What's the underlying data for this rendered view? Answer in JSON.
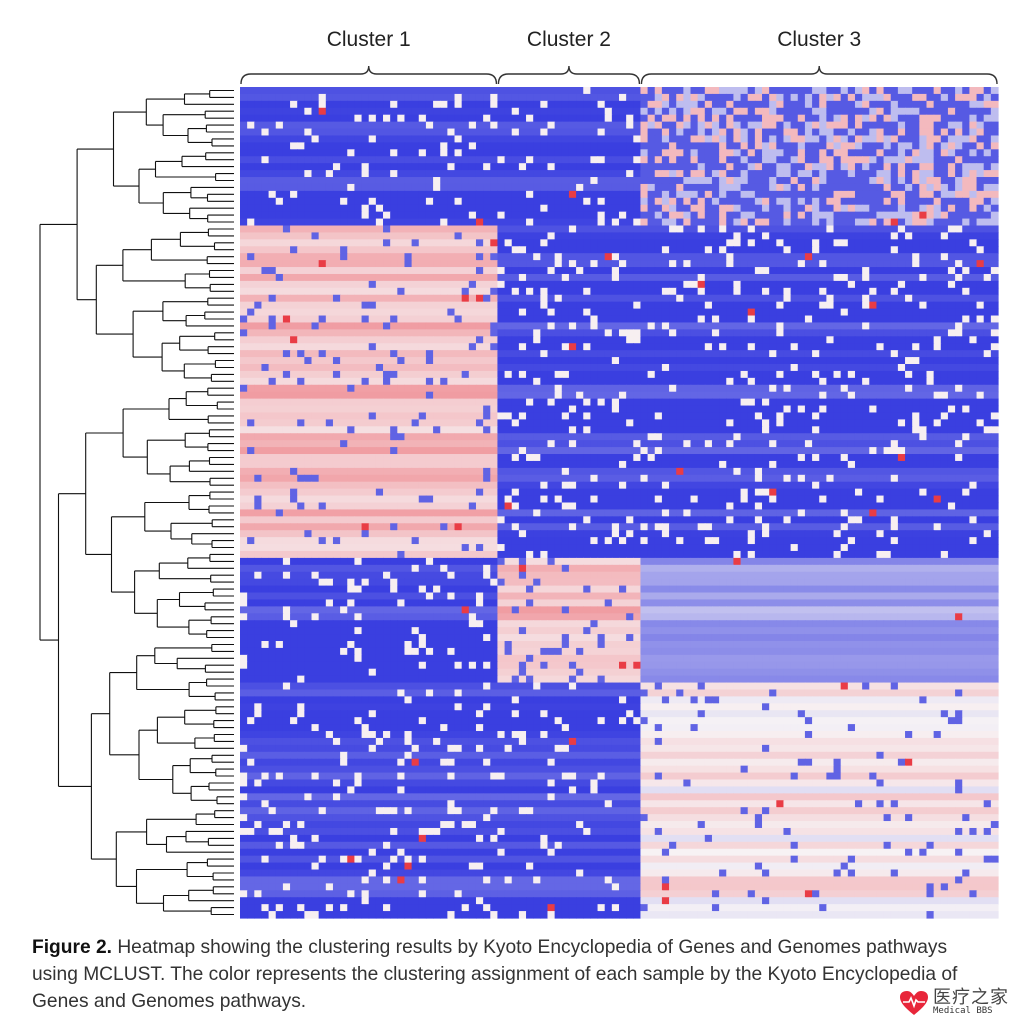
{
  "chart_data": {
    "type": "heatmap",
    "title": "",
    "clusters": [
      {
        "name": "Cluster 1",
        "columns": 36
      },
      {
        "name": "Cluster 2",
        "columns": 20
      },
      {
        "name": "Cluster 3",
        "columns": 50
      }
    ],
    "row_count": 120,
    "row_groups": [
      {
        "rows": 20,
        "pattern": [
          "blue",
          "blue",
          "mixed"
        ]
      },
      {
        "rows": 48,
        "pattern": [
          "pink",
          "blue",
          "blue"
        ]
      },
      {
        "rows": 18,
        "pattern": [
          "blue",
          "pink",
          "lightblue"
        ]
      },
      {
        "rows": 34,
        "pattern": [
          "blue",
          "blue",
          "white"
        ]
      }
    ],
    "color_scale": {
      "low": "#3a3fe0",
      "mid": "#f7f3f5",
      "high": "#e8323c",
      "meaning": "clustering assignment of each sample by KEGG pathway"
    },
    "dendrogram": "hierarchical clustering of rows (left)"
  },
  "caption": {
    "label": "Figure 2.",
    "text": "Heatmap showing the clustering results by Kyoto Encyclopedia of Genes and Genomes pathways using MCLUST. The color represents the clustering assignment of each sample by the Kyoto Encyclopedia of Genes and Genomes pathways."
  },
  "watermark": {
    "cn": "医疗之家",
    "en": "Medical BBS",
    "heart_color": "#e8263a"
  }
}
